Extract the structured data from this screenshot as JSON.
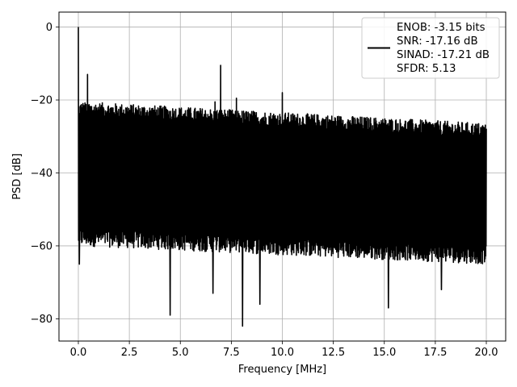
{
  "chart_data": {
    "type": "line",
    "title": "",
    "xlabel": "Frequency [MHz]",
    "ylabel": "PSD [dB]",
    "xlim": [
      -0.95,
      20.95
    ],
    "ylim": [
      -86.1,
      4.1
    ],
    "xticks": [
      0,
      2.5,
      5,
      7.5,
      10,
      12.5,
      15,
      17.5,
      20
    ],
    "xtick_labels": [
      "0.0",
      "2.5",
      "5.0",
      "7.5",
      "10.0",
      "12.5",
      "15.0",
      "17.5",
      "20.0"
    ],
    "yticks": [
      0,
      -20,
      -40,
      -60,
      -80
    ],
    "ytick_labels": [
      "0",
      "−20",
      "−40",
      "−60",
      "−80"
    ],
    "grid": true,
    "legend_position": "upper-right",
    "line_color": "#000000",
    "legend_lines": [
      "ENOB: -3.15 bits",
      "SNR: -17.16 dB",
      "SINAD: -17.21 dB",
      "SFDR: 5.13"
    ],
    "series": [
      {
        "name": "ENOB: -3.15 bits",
        "noise_upper_start_db": -22,
        "noise_upper_end_db": -28,
        "noise_lower_start_db": -58,
        "noise_lower_end_db": -63,
        "spurs": [
          {
            "x": 0.0,
            "y": 0.0
          },
          {
            "x": 0.45,
            "y": -13
          },
          {
            "x": 6.98,
            "y": -10.5
          },
          {
            "x": 10.0,
            "y": -18
          },
          {
            "x": 6.7,
            "y": -20.5
          },
          {
            "x": 7.75,
            "y": -19.5
          }
        ],
        "dips": [
          {
            "x": 0.05,
            "y": -65
          },
          {
            "x": 4.5,
            "y": -79
          },
          {
            "x": 8.05,
            "y": -82
          },
          {
            "x": 8.9,
            "y": -76
          },
          {
            "x": 6.6,
            "y": -73
          },
          {
            "x": 15.2,
            "y": -77
          },
          {
            "x": 17.8,
            "y": -72
          }
        ]
      }
    ]
  }
}
